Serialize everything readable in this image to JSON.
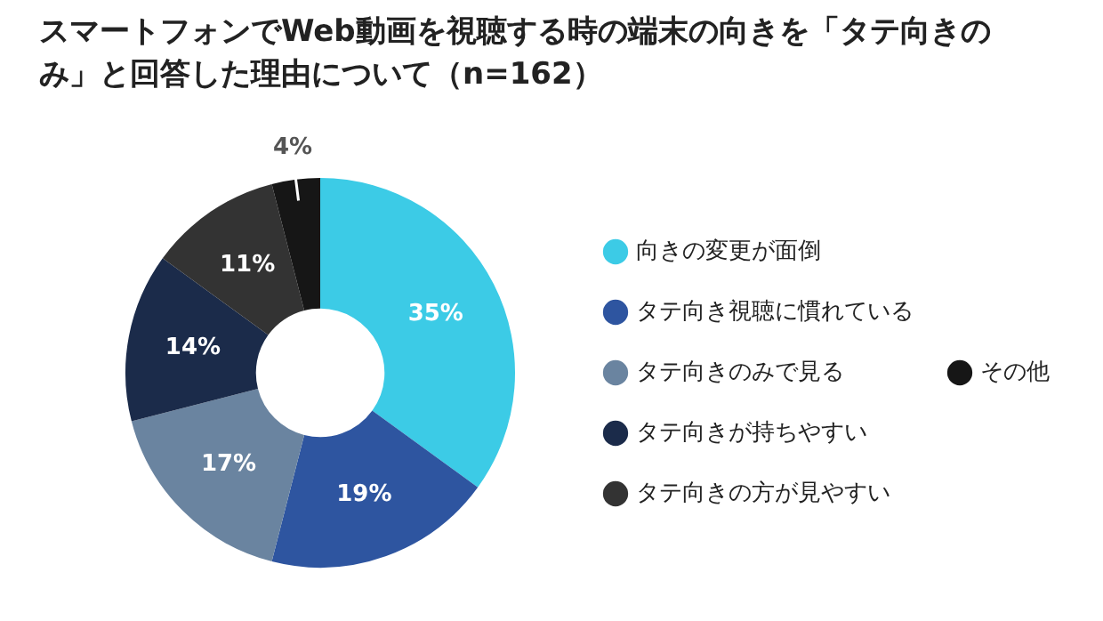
{
  "chart_data": {
    "type": "donut",
    "title": "スマートフォンでWeb動画を視聴する時の端末の向きを「タテ向きのみ」と回答した理由について（n=162）",
    "categories": [
      "向きの変更が面倒",
      "タテ向き視聴に慣れている",
      "タテ向きのみで見る",
      "タテ向きが持ちやすい",
      "タテ向きの方が見やすい",
      "その他"
    ],
    "values": [
      35,
      19,
      17,
      14,
      11,
      4
    ],
    "colors": [
      "#3ccbe6",
      "#2e55a0",
      "#6a84a0",
      "#1b2b4a",
      "#333333",
      "#161616"
    ],
    "value_labels": [
      "35%",
      "19%",
      "17%",
      "14%",
      "11%",
      "4%"
    ],
    "legend": "right"
  }
}
